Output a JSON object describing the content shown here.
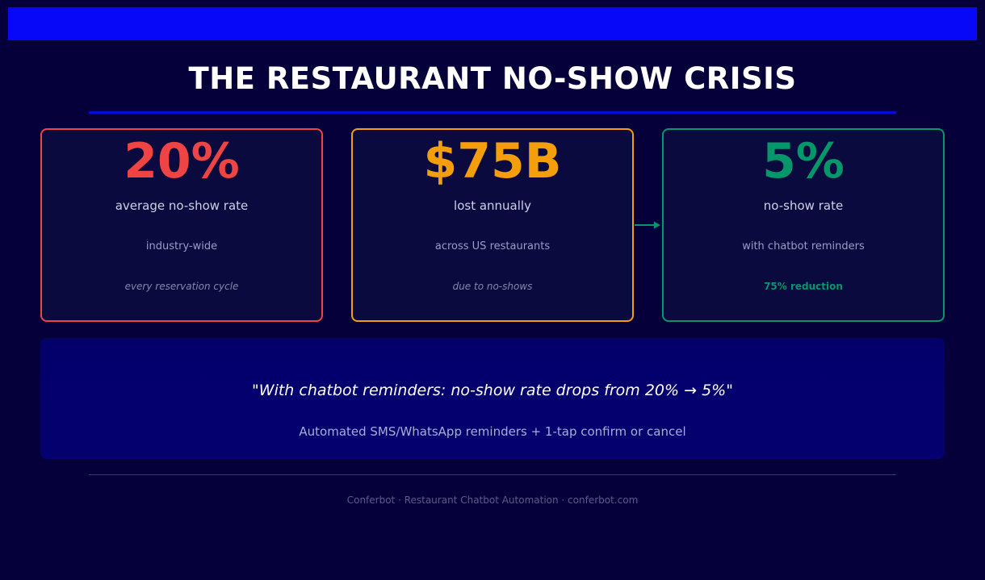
{
  "title": "THE RESTAURANT NO-SHOW CRISIS",
  "colors": {
    "background": "#05003a",
    "band": "#0808f8",
    "red": "#ef4444",
    "orange": "#f59e0b",
    "green": "#059669"
  },
  "cards": [
    {
      "value": "20%",
      "label": "average no-show rate",
      "sub": "industry-wide",
      "note": "every reservation cycle"
    },
    {
      "value": "$75B",
      "label": "lost annually",
      "sub": "across US restaurants",
      "note": "due to no-shows"
    },
    {
      "value": "5%",
      "label": "no-show rate",
      "sub": "with chatbot reminders",
      "note": "75% reduction"
    }
  ],
  "quote": {
    "text": "\"With chatbot reminders: no-show rate drops from 20% → 5%\"",
    "sub": "Automated SMS/WhatsApp reminders + 1-tap confirm or cancel"
  },
  "footer": "Conferbot · Restaurant Chatbot Automation · conferbot.com"
}
